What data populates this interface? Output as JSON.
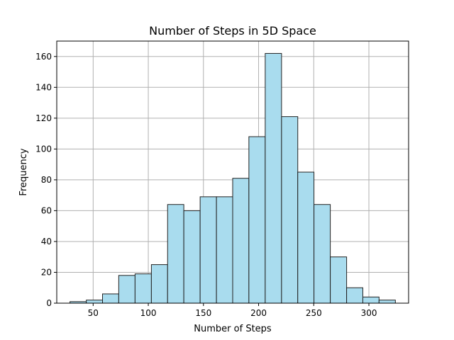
{
  "chart_data": {
    "type": "bar",
    "title": "Number of Steps in 5D Space",
    "xlabel": "Number of Steps",
    "ylabel": "Frequency",
    "xlim": [
      17,
      336
    ],
    "ylim": [
      0,
      170
    ],
    "xticks": [
      50,
      100,
      150,
      200,
      250,
      300
    ],
    "yticks": [
      0,
      20,
      40,
      60,
      80,
      100,
      120,
      140,
      160
    ],
    "grid": true,
    "bar_color": "#a9dcee",
    "edge_color": "#222222",
    "bins": [
      {
        "start": 29.0,
        "end": 43.8,
        "value": 1
      },
      {
        "start": 43.8,
        "end": 58.5,
        "value": 2
      },
      {
        "start": 58.5,
        "end": 73.2,
        "value": 6
      },
      {
        "start": 73.2,
        "end": 88.0,
        "value": 18
      },
      {
        "start": 88.0,
        "end": 102.8,
        "value": 19
      },
      {
        "start": 102.8,
        "end": 117.5,
        "value": 25
      },
      {
        "start": 117.5,
        "end": 132.2,
        "value": 64
      },
      {
        "start": 132.2,
        "end": 147.0,
        "value": 60
      },
      {
        "start": 147.0,
        "end": 161.8,
        "value": 69
      },
      {
        "start": 161.8,
        "end": 176.5,
        "value": 69
      },
      {
        "start": 176.5,
        "end": 191.2,
        "value": 81
      },
      {
        "start": 191.2,
        "end": 206.0,
        "value": 108
      },
      {
        "start": 206.0,
        "end": 220.8,
        "value": 162
      },
      {
        "start": 220.8,
        "end": 235.5,
        "value": 121
      },
      {
        "start": 235.5,
        "end": 250.2,
        "value": 85
      },
      {
        "start": 250.2,
        "end": 265.0,
        "value": 64
      },
      {
        "start": 265.0,
        "end": 279.8,
        "value": 30
      },
      {
        "start": 279.8,
        "end": 294.5,
        "value": 10
      },
      {
        "start": 294.5,
        "end": 309.2,
        "value": 4
      },
      {
        "start": 309.2,
        "end": 324.0,
        "value": 2
      }
    ]
  }
}
